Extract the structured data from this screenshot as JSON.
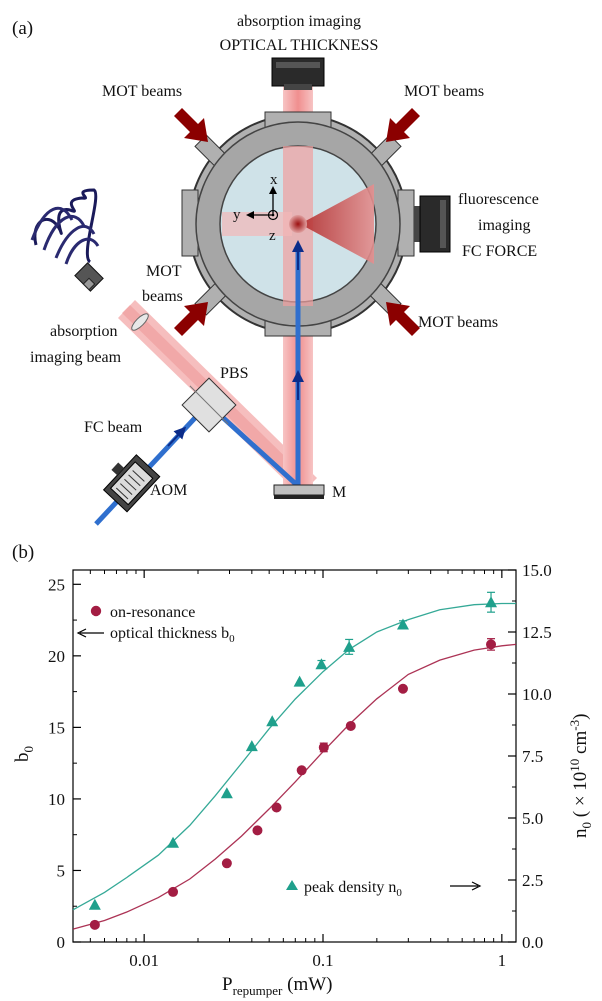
{
  "panel_a": {
    "label": "(a)",
    "top_camera_line1": "absorption imaging",
    "top_camera_line2": "OPTICAL THICKNESS",
    "mot_tl": "MOT beams",
    "mot_tr": "MOT beams",
    "mot_ml_line1": "MOT",
    "mot_ml_line2": "beams",
    "mot_br": "MOT beams",
    "fluor_line1": "fluorescence",
    "fluor_line2": "imaging",
    "fluor_line3": "FC FORCE",
    "abs_beam_line1": "absorption",
    "abs_beam_line2": "imaging beam",
    "pbs": "PBS",
    "fc_beam": "FC beam",
    "aom": "AOM",
    "mirror": "M",
    "axis_x": "x",
    "axis_y": "y",
    "axis_z": "z"
  },
  "panel_b": {
    "label": "(b)",
    "legend_circle_line1": "on-resonance",
    "legend_circle_line2": "optical thickness b",
    "legend_circle_sub": "0",
    "legend_triangle": "peak density n",
    "legend_triangle_sub": "0"
  },
  "colors": {
    "series_b0": "#a31d43",
    "series_n0": "#1fa08c",
    "beam_red": "#f2a5a5",
    "beam_blue": "#1e5fb8",
    "chamber_gray": "#a9a9a9",
    "window": "#cde0e6",
    "arrow_darkred": "#8b0000"
  },
  "chart_data": {
    "type": "scatter",
    "x_scale": "log",
    "xlim": [
      0.004,
      1.2
    ],
    "xlabel_main": "P",
    "xlabel_sub": "repumper",
    "xlabel_unit": " (mW)",
    "x_ticks": [
      0.01,
      0.1,
      1
    ],
    "x_tick_labels": [
      "0.01",
      "0.1",
      "1"
    ],
    "ylabel_left": "b",
    "ylabel_left_sub": "0",
    "ylim_left": [
      0,
      26
    ],
    "y_ticks_left": [
      0,
      5,
      10,
      15,
      20,
      25
    ],
    "y_tick_labels_left": [
      "0",
      "5",
      "10",
      "15",
      "20",
      "25"
    ],
    "ylabel_right": "n (× 10 cm )",
    "ylabel_right_parts": [
      "n",
      "0",
      " ( × 10",
      "10",
      " cm",
      "-3",
      ")"
    ],
    "ylim_right": [
      0,
      15
    ],
    "y_ticks_right": [
      0,
      2.5,
      5,
      7.5,
      10,
      12.5,
      15
    ],
    "y_tick_labels_right": [
      "0.0",
      "2.5",
      "5.0",
      "7.5",
      "10.0",
      "12.5",
      "15.0"
    ],
    "series": [
      {
        "name": "on-resonance optical thickness b0",
        "axis": "left",
        "marker": "circle",
        "x": [
          0.0053,
          0.0145,
          0.029,
          0.043,
          0.055,
          0.076,
          0.101,
          0.143,
          0.28,
          0.87
        ],
        "y": [
          1.2,
          3.5,
          5.5,
          7.8,
          9.4,
          12.0,
          13.6,
          15.1,
          17.7,
          20.8
        ],
        "err": [
          0,
          0,
          0,
          0,
          0,
          0,
          0.3,
          0,
          0,
          0.4
        ],
        "fit_x": [
          0.004,
          0.006,
          0.008,
          0.012,
          0.018,
          0.025,
          0.035,
          0.05,
          0.07,
          0.1,
          0.14,
          0.2,
          0.3,
          0.45,
          0.7,
          1.0,
          1.2
        ],
        "fit_y": [
          0.9,
          1.5,
          2.1,
          3.1,
          4.4,
          5.8,
          7.4,
          9.3,
          11.2,
          13.3,
          15.2,
          17.0,
          18.7,
          19.7,
          20.4,
          20.7,
          20.8
        ]
      },
      {
        "name": "peak density n0",
        "axis": "right",
        "marker": "triangle",
        "x": [
          0.0053,
          0.0145,
          0.029,
          0.04,
          0.052,
          0.074,
          0.098,
          0.14,
          0.28,
          0.87
        ],
        "y": [
          1.5,
          4.0,
          6.0,
          7.9,
          8.9,
          10.5,
          11.2,
          11.9,
          12.8,
          13.7
        ],
        "err": [
          0,
          0,
          0,
          0,
          0,
          0,
          0.15,
          0.3,
          0.15,
          0.4
        ],
        "fit_x": [
          0.004,
          0.006,
          0.008,
          0.012,
          0.018,
          0.025,
          0.035,
          0.05,
          0.07,
          0.1,
          0.14,
          0.2,
          0.3,
          0.45,
          0.7,
          1.0,
          1.2
        ],
        "fit_y": [
          1.3,
          2.0,
          2.6,
          3.5,
          4.7,
          5.9,
          7.2,
          8.6,
          9.8,
          10.9,
          11.8,
          12.5,
          13.0,
          13.4,
          13.6,
          13.65,
          13.65
        ]
      }
    ]
  }
}
